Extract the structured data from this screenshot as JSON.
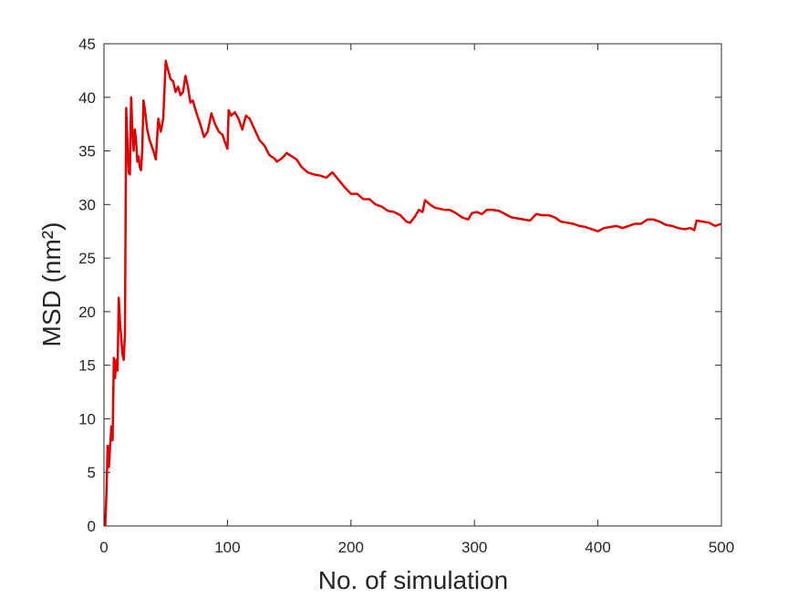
{
  "chart_data": {
    "type": "line",
    "xlabel": "No. of simulation",
    "ylabel": "MSD (nm²)",
    "x": [
      1,
      2,
      3,
      4,
      5,
      6,
      7,
      8,
      9,
      10,
      11,
      12,
      13,
      14,
      15,
      16,
      17,
      18,
      19,
      20,
      21,
      22,
      23,
      24,
      25,
      26,
      27,
      28,
      29,
      30,
      31,
      32,
      33,
      35,
      37,
      40,
      42,
      44,
      46,
      48,
      50,
      52,
      54,
      56,
      58,
      60,
      62,
      64,
      66,
      68,
      70,
      72,
      75,
      78,
      81,
      84,
      87,
      90,
      93,
      96,
      98,
      100,
      101,
      103,
      106,
      109,
      112,
      115,
      118,
      122,
      126,
      130,
      134,
      138,
      140,
      144,
      148,
      152,
      156,
      160,
      165,
      170,
      175,
      180,
      185,
      190,
      195,
      200,
      205,
      210,
      215,
      220,
      225,
      230,
      235,
      240,
      245,
      248,
      252,
      255,
      258,
      260,
      264,
      268,
      272,
      276,
      280,
      285,
      290,
      295,
      298,
      302,
      306,
      310,
      315,
      320,
      325,
      330,
      335,
      340,
      345,
      350,
      355,
      360,
      365,
      370,
      375,
      380,
      385,
      390,
      395,
      400,
      405,
      410,
      415,
      420,
      425,
      430,
      435,
      440,
      445,
      450,
      455,
      460,
      465,
      470,
      475,
      478,
      480,
      485,
      490,
      495,
      500
    ],
    "series": [
      {
        "color": "#e00000",
        "values": [
          0,
          3,
          7.5,
          5.5,
          7.5,
          9.3,
          8,
          15.7,
          13.8,
          15.5,
          14.5,
          21.3,
          19,
          17.5,
          16,
          15.5,
          18,
          39,
          36,
          33,
          32.8,
          40,
          37,
          35,
          37,
          36,
          34,
          34.5,
          33.5,
          33.2,
          35,
          39.7,
          39,
          37,
          36,
          35,
          34.2,
          38,
          36.8,
          38,
          43.4,
          42.5,
          41.7,
          41.5,
          40.5,
          41,
          40.2,
          40.5,
          42,
          41,
          39.5,
          39.7,
          38.5,
          37.5,
          36.3,
          36.8,
          38.5,
          37.5,
          36.8,
          36.5,
          35.8,
          35.2,
          38.8,
          38.3,
          38.6,
          38,
          37,
          38.3,
          38,
          37,
          36,
          35.5,
          34.6,
          34.3,
          34,
          34.3,
          34.8,
          34.5,
          34.2,
          33.5,
          33,
          32.8,
          32.7,
          32.5,
          33,
          32.3,
          31.6,
          31,
          31,
          30.5,
          30.5,
          30,
          29.8,
          29.4,
          29.3,
          29,
          28.4,
          28.3,
          28.9,
          29.5,
          29.3,
          30.4,
          30,
          29.7,
          29.6,
          29.5,
          29.5,
          29.2,
          28.8,
          28.6,
          29.2,
          29.3,
          29.1,
          29.5,
          29.5,
          29.4,
          29.1,
          28.8,
          28.7,
          28.6,
          28.5,
          29.1,
          29,
          29,
          28.8,
          28.4,
          28.3,
          28.2,
          28,
          27.9,
          27.7,
          27.5,
          27.8,
          27.9,
          28,
          27.8,
          28,
          28.2,
          28.2,
          28.6,
          28.6,
          28.4,
          28.1,
          28,
          27.8,
          27.7,
          27.8,
          27.6,
          28.5,
          28.4,
          28.3,
          28,
          28.2
        ]
      }
    ],
    "xlim": [
      0,
      500
    ],
    "xticks": [
      0,
      100,
      200,
      300,
      400,
      500
    ],
    "ylim": [
      0,
      45
    ],
    "yticks": [
      0,
      5,
      10,
      15,
      20,
      25,
      30,
      35,
      40,
      45
    ]
  }
}
